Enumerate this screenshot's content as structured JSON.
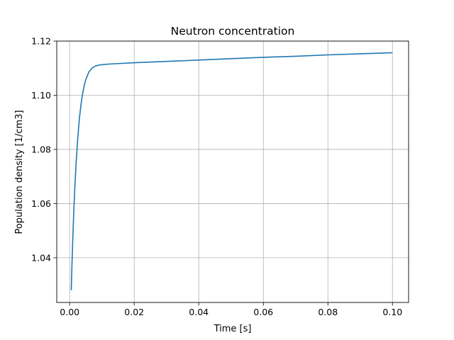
{
  "chart_data": {
    "type": "line",
    "title": "Neutron concentration",
    "xlabel": "Time [s]",
    "ylabel": "Population density [1/cm3]",
    "xlim": [
      -0.004,
      0.105
    ],
    "ylim": [
      1.0235,
      1.12
    ],
    "grid": true,
    "x_ticks": [
      {
        "value": 0.0,
        "label": "0.00"
      },
      {
        "value": 0.02,
        "label": "0.02"
      },
      {
        "value": 0.04,
        "label": "0.04"
      },
      {
        "value": 0.06,
        "label": "0.06"
      },
      {
        "value": 0.08,
        "label": "0.08"
      },
      {
        "value": 0.1,
        "label": "0.10"
      }
    ],
    "y_ticks": [
      {
        "value": 1.04,
        "label": "1.04"
      },
      {
        "value": 1.06,
        "label": "1.06"
      },
      {
        "value": 1.08,
        "label": "1.08"
      },
      {
        "value": 1.1,
        "label": "1.10"
      },
      {
        "value": 1.12,
        "label": "1.12"
      }
    ],
    "series": [
      {
        "color": "#1f77b4",
        "x": [
          0.0005,
          0.0007,
          0.001,
          0.0013,
          0.0016,
          0.002,
          0.0025,
          0.003,
          0.0035,
          0.004,
          0.0045,
          0.005,
          0.006,
          0.007,
          0.008,
          0.009,
          0.01,
          0.012,
          0.015,
          0.02,
          0.03,
          0.04,
          0.05,
          0.06,
          0.07,
          0.08,
          0.09,
          0.1
        ],
        "y": [
          1.028,
          1.037,
          1.048,
          1.058,
          1.066,
          1.075,
          1.084,
          1.0913,
          1.0965,
          1.1005,
          1.1035,
          1.1058,
          1.1087,
          1.1101,
          1.1108,
          1.1111,
          1.1113,
          1.1115,
          1.1117,
          1.112,
          1.1125,
          1.113,
          1.1135,
          1.114,
          1.1144,
          1.1149,
          1.1153,
          1.1157
        ]
      }
    ]
  }
}
